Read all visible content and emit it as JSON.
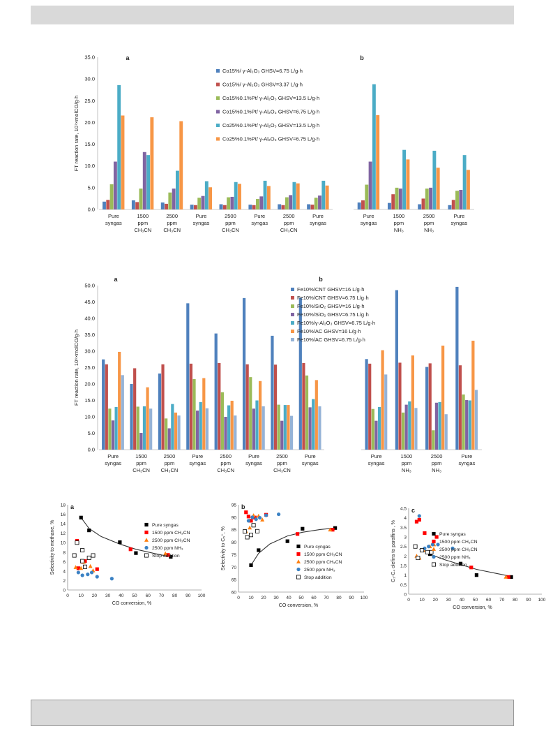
{
  "chart_data": [
    {
      "id": "fig1",
      "type": "bar",
      "ylabel": "FT reaction rate, 10⁷×molCO/g·h",
      "ylim": [
        0,
        35
      ],
      "yticks": [
        "0.0",
        "5.0",
        "10.0",
        "15.0",
        "20.0",
        "25.0",
        "30.0",
        "35.0"
      ],
      "panel_labels": [
        "a",
        "b"
      ],
      "colors": [
        "#4f81bd",
        "#c0504d",
        "#9bbb59",
        "#8064a2",
        "#4bacc6",
        "#f79646"
      ],
      "legend": [
        "Co15%/ γ-Al₂O₃  GHSV=6.75 L/g·h",
        "Co15%/ γ-Al₂O₃  GHSV=3.37 L/g·h",
        "Co15%0.1%Pt/ γ-Al₂O₃ GHSV=13.5 L/g·h",
        "Co15%0.1%Pt/ γ-Al₂O₃ GHSV=6.75 L/g·h",
        "Co25%0.1%Pt/ γ-Al₂O₃ GHSV=13.5 L/g·h",
        "Co25%0.1%Pt/ γ-Al₂O₃ GHSV=6.75 L/g·h"
      ],
      "categories_a": [
        "Pure syngas",
        "1500 ppm CH₃CN",
        "2500 ppm CH₃CN",
        "Pure syngas",
        "2500 ppm CH₃CN",
        "Pure syngas",
        "2500 ppm CH₃CN",
        "Pure syngas"
      ],
      "values_a": [
        [
          1.8,
          2.2,
          5.8,
          11.0,
          28.6,
          21.6
        ],
        [
          2.1,
          1.7,
          4.8,
          13.2,
          12.5,
          21.2
        ],
        [
          1.6,
          1.3,
          3.9,
          4.8,
          8.9,
          20.3
        ],
        [
          1.1,
          1.0,
          2.7,
          3.1,
          6.5,
          5.1
        ],
        [
          1.2,
          1.0,
          2.8,
          2.9,
          6.3,
          5.9
        ],
        [
          1.1,
          1.0,
          2.4,
          3.0,
          6.6,
          5.4
        ],
        [
          1.2,
          1.0,
          2.8,
          3.3,
          6.3,
          6.0
        ],
        [
          1.2,
          1.1,
          2.7,
          3.2,
          6.6,
          5.5
        ]
      ],
      "categories_b": [
        "Pure syngas",
        "1500 ppm NH₃",
        "2500 ppm NH₃",
        "Pure syngas"
      ],
      "values_b": [
        [
          1.6,
          2.1,
          5.7,
          11.0,
          28.8,
          21.7
        ],
        [
          1.5,
          3.5,
          5.0,
          4.8,
          13.7,
          11.5
        ],
        [
          1.2,
          2.5,
          4.8,
          5.0,
          13.5,
          9.6
        ],
        [
          1.0,
          2.2,
          4.3,
          4.5,
          12.5,
          9.1
        ]
      ]
    },
    {
      "id": "fig2",
      "type": "bar",
      "ylabel": "FT reaction rate, 10⁶×molCO/g·h",
      "ylim": [
        0,
        50
      ],
      "yticks": [
        "0.0",
        "5.0",
        "10.0",
        "15.0",
        "20.0",
        "25.0",
        "30.0",
        "35.0",
        "40.0",
        "45.0",
        "50.0"
      ],
      "panel_labels": [
        "a",
        "b"
      ],
      "colors": [
        "#4f81bd",
        "#c0504d",
        "#9bbb59",
        "#8064a2",
        "#4bacc6",
        "#f79646",
        "#95b3d7"
      ],
      "legend": [
        "Fe10%/CNT   GHSV=16 L/g·h",
        "Fe10%/CNT   GHSV=6.75 L/g·h",
        "Fe10%/SiO₂   GHSV=16 L/g·h",
        "Fe10%/SiO₂   GHSV=6.75 L/g·h",
        "Fe10%/γ-Al₂O₃  GHSV=6.75 L/g·h",
        "Fe10%/AC   GHSV=16 L/g·h",
        "Fe10%/AC   GHSV=6.75 L/g·h"
      ],
      "categories_a": [
        "Pure syngas",
        "1500 ppm CH₃CN",
        "2500 ppm CH₃CN",
        "Pure syngas",
        "2500 ppm CH₃CN",
        "Pure syngas",
        "2500 ppm CH₃CN",
        "Pure syngas"
      ],
      "values_a": [
        [
          27.5,
          26.0,
          12.5,
          8.9,
          13.0,
          29.8,
          22.7
        ],
        [
          20.0,
          24.8,
          13.1,
          5.1,
          13.2,
          19.0,
          12.5
        ],
        [
          23.2,
          26.0,
          9.5,
          6.5,
          13.9,
          11.3,
          10.4
        ],
        [
          44.6,
          26.2,
          21.5,
          11.9,
          14.5,
          21.8,
          12.6
        ],
        [
          35.4,
          26.4,
          17.5,
          10.0,
          13.5,
          14.9,
          10.4
        ],
        [
          46.2,
          26.0,
          22.1,
          12.5,
          15.0,
          20.9,
          13.2
        ],
        [
          34.7,
          25.9,
          13.7,
          8.8,
          13.6,
          13.6,
          10.3
        ],
        [
          46.3,
          26.4,
          22.6,
          12.9,
          15.4,
          21.2,
          13.2
        ]
      ],
      "categories_b": [
        "Pure syngas",
        "1500 ppm NH₃",
        "2500 ppm NH₃",
        "Pure syngas"
      ],
      "values_b": [
        [
          27.6,
          26.2,
          12.4,
          8.8,
          13.0,
          30.3,
          22.9
        ],
        [
          48.6,
          26.5,
          11.3,
          13.7,
          14.7,
          28.7,
          12.7
        ],
        [
          25.2,
          26.3,
          5.9,
          14.3,
          14.5,
          31.7,
          10.8
        ],
        [
          49.6,
          25.7,
          16.8,
          15.1,
          15.0,
          33.2,
          18.2
        ]
      ]
    },
    {
      "id": "fig3a",
      "type": "scatter",
      "panel": "a",
      "xlabel": "CO conversion, %",
      "ylabel": "Selectivity to methane, %",
      "xlim": [
        0,
        100
      ],
      "ylim": [
        0,
        18
      ],
      "xticks": [
        0,
        10,
        20,
        30,
        40,
        50,
        60,
        70,
        80,
        90,
        100
      ],
      "yticks": [
        0,
        2,
        4,
        6,
        8,
        10,
        12,
        14,
        16,
        18
      ],
      "legend": [
        "Pure syngas",
        "1500 ppm CH₃CN",
        "2500 ppm CH₃CN",
        "2500 ppm NH₃",
        "Stop addition"
      ],
      "series": [
        {
          "name": "Pure syngas",
          "marker": "square",
          "color": "#000000",
          "points": [
            [
              10,
              15.3
            ],
            [
              16,
              12.6
            ],
            [
              39,
              10.1
            ],
            [
              51,
              7.8
            ],
            [
              77,
              7.0
            ]
          ]
        },
        {
          "name": "1500 ppm CH₃CN",
          "marker": "square",
          "color": "#ff0000",
          "points": [
            [
              7,
              10.4
            ],
            [
              8,
              4.6
            ],
            [
              11,
              6.0
            ],
            [
              13,
              6.1
            ],
            [
              22,
              4.4
            ],
            [
              47,
              8.6
            ],
            [
              75,
              7.4
            ]
          ]
        },
        {
          "name": "2500 ppm CH₃CN",
          "marker": "triangle",
          "color": "#ff7f0e",
          "points": [
            [
              6,
              4.8
            ],
            [
              10,
              4.6
            ],
            [
              12,
              5.9
            ],
            [
              17,
              5.0
            ],
            [
              19,
              4.1
            ],
            [
              73,
              7.7
            ]
          ]
        },
        {
          "name": "2500 ppm NH₃",
          "marker": "circle",
          "color": "#3b82c4",
          "points": [
            [
              8,
              3.7
            ],
            [
              11,
              3.1
            ],
            [
              15,
              3.3
            ],
            [
              18,
              3.7
            ],
            [
              22,
              2.8
            ],
            [
              33,
              2.4
            ]
          ]
        },
        {
          "name": "Stop addition",
          "marker": "open-square",
          "color": "#000000",
          "points": [
            [
              5,
              7.3
            ],
            [
              7,
              10.0
            ],
            [
              11,
              8.4
            ],
            [
              16,
              6.8
            ],
            [
              19,
              7.3
            ],
            [
              11,
              6.1
            ],
            [
              13,
              4.9
            ]
          ]
        }
      ],
      "trend": [
        [
          10,
          15.3
        ],
        [
          16,
          13.0
        ],
        [
          25,
          11.3
        ],
        [
          39,
          9.7
        ],
        [
          51,
          8.6
        ],
        [
          65,
          7.7
        ],
        [
          77,
          7.0
        ]
      ]
    },
    {
      "id": "fig3b",
      "type": "scatter",
      "panel": "b",
      "xlabel": "CO conversion, %",
      "ylabel": "Selectivity to C₅⁺, %",
      "xlim": [
        0,
        100
      ],
      "ylim": [
        60,
        95
      ],
      "xticks": [
        0,
        10,
        20,
        30,
        40,
        50,
        60,
        70,
        80,
        90,
        100
      ],
      "yticks": [
        60,
        65,
        70,
        75,
        80,
        85,
        90,
        95
      ],
      "legend": [
        "Pure syngas",
        "1500 ppm CH₃CN",
        "2500 ppm CH₃CN",
        "2500 ppm NH₃",
        "Stop addition"
      ],
      "series": [
        {
          "name": "Pure syngas",
          "marker": "square",
          "color": "#000000",
          "points": [
            [
              10,
              70.8
            ],
            [
              16,
              76.8
            ],
            [
              39,
              80.4
            ],
            [
              51,
              85.4
            ],
            [
              77,
              85.7
            ]
          ]
        },
        {
          "name": "1500 ppm CH₃CN",
          "marker": "square",
          "color": "#ff0000",
          "points": [
            [
              6,
              92.0
            ],
            [
              8,
              90.3
            ],
            [
              10,
              88.6
            ],
            [
              13,
              89.9
            ],
            [
              22,
              91.0
            ],
            [
              47,
              83.3
            ],
            [
              75,
              85.0
            ]
          ]
        },
        {
          "name": "2500 ppm CH₃CN",
          "marker": "triangle",
          "color": "#ff7f0e",
          "points": [
            [
              6,
              84.3
            ],
            [
              9,
              85.8
            ],
            [
              12,
              90.7
            ],
            [
              16,
              90.5
            ],
            [
              19,
              89.0
            ],
            [
              73,
              85.0
            ]
          ]
        },
        {
          "name": "2500 ppm NH₃",
          "marker": "circle",
          "color": "#3b82c4",
          "points": [
            [
              8,
              88.6
            ],
            [
              11,
              90.0
            ],
            [
              14,
              89.2
            ],
            [
              17,
              89.8
            ],
            [
              22,
              90.8
            ],
            [
              32,
              91.2
            ]
          ]
        },
        {
          "name": "Stop addition",
          "marker": "open-square",
          "color": "#000000",
          "points": [
            [
              5,
              84.3
            ],
            [
              7,
              82.0
            ],
            [
              10,
              82.9
            ],
            [
              12,
              86.8
            ],
            [
              15,
              84.4
            ]
          ]
        }
      ],
      "trend": [
        [
          10,
          70.8
        ],
        [
          16,
          75.5
        ],
        [
          25,
          79.3
        ],
        [
          39,
          82.5
        ],
        [
          51,
          84.0
        ],
        [
          65,
          85.1
        ],
        [
          77,
          85.7
        ]
      ]
    },
    {
      "id": "fig3c",
      "type": "scatter",
      "panel": "c",
      "xlabel": "CO conversion, %",
      "ylabel": "C₂-C₄ olefins to paraffins , %",
      "xlim": [
        0,
        100
      ],
      "ylim": [
        0,
        4.5
      ],
      "xticks": [
        0,
        10,
        20,
        30,
        40,
        50,
        60,
        70,
        80,
        90,
        100
      ],
      "yticks": [
        0,
        0.5,
        1,
        1.5,
        2,
        2.5,
        3,
        3.5,
        4,
        4.5
      ],
      "legend": [
        "Pure syngas",
        "1500 ppm CH₃CN",
        "2500 ppm CH₃CN",
        "2500 ppm NH₃",
        "Stop addition"
      ],
      "series": [
        {
          "name": "Pure syngas",
          "marker": "square",
          "color": "#000000",
          "points": [
            [
              10,
              2.3
            ],
            [
              16,
              2.1
            ],
            [
              39,
              1.6
            ],
            [
              51,
              1.0
            ],
            [
              77,
              0.9
            ]
          ]
        },
        {
          "name": "1500 ppm CH₃CN",
          "marker": "square",
          "color": "#ff0000",
          "points": [
            [
              6,
              3.8
            ],
            [
              8,
              3.9
            ],
            [
              12,
              3.2
            ],
            [
              21,
              3.0
            ],
            [
              47,
              1.4
            ],
            [
              75,
              0.9
            ]
          ]
        },
        {
          "name": "2500 ppm CH₃CN",
          "marker": "triangle",
          "color": "#ff7f0e",
          "points": [
            [
              6,
              2.0
            ],
            [
              8,
              1.9
            ],
            [
              11,
              2.3
            ],
            [
              16,
              2.5
            ],
            [
              19,
              2.6
            ],
            [
              73,
              0.9
            ]
          ]
        },
        {
          "name": "2500 ppm NH₃",
          "marker": "circle",
          "color": "#3b82c4",
          "points": [
            [
              8,
              4.1
            ],
            [
              12,
              2.4
            ],
            [
              15,
              2.5
            ],
            [
              18,
              2.6
            ],
            [
              22,
              2.6
            ],
            [
              33,
              2.4
            ]
          ]
        },
        {
          "name": "Stop addition",
          "marker": "open-square",
          "color": "#000000",
          "points": [
            [
              5,
              2.5
            ],
            [
              7,
              1.9
            ],
            [
              10,
              2.3
            ],
            [
              14,
              2.2
            ],
            [
              17,
              2.2
            ]
          ]
        }
      ],
      "trend": [
        [
          8,
          2.35
        ],
        [
          16,
          2.1
        ],
        [
          25,
          1.85
        ],
        [
          39,
          1.55
        ],
        [
          51,
          1.3
        ],
        [
          65,
          1.1
        ],
        [
          77,
          0.93
        ]
      ]
    }
  ]
}
